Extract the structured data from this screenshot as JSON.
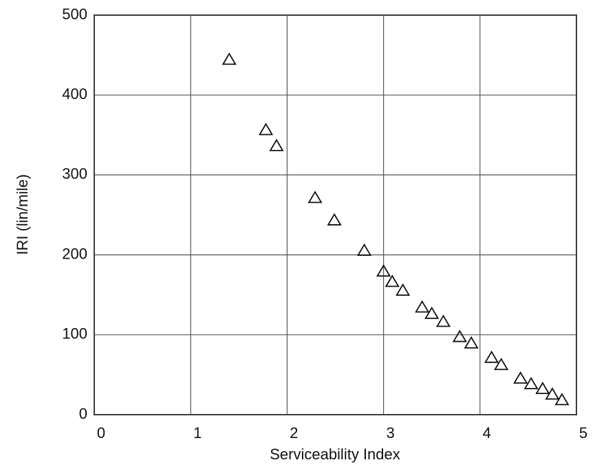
{
  "chart_data": {
    "type": "scatter",
    "x_label": "Serviceability Index",
    "y_label": "IRI (lin/mile)",
    "x": [
      1.4,
      1.78,
      1.89,
      2.29,
      2.49,
      2.8,
      3.0,
      3.09,
      3.2,
      3.4,
      3.5,
      3.62,
      3.79,
      3.91,
      4.12,
      4.22,
      4.42,
      4.53,
      4.65,
      4.75,
      4.85
    ],
    "values": [
      444,
      356,
      336,
      271,
      243,
      205,
      179,
      166,
      155,
      134,
      126,
      116,
      97,
      89,
      71,
      62,
      45,
      38,
      32,
      25,
      18
    ],
    "marker": "triangle",
    "color": "#111111",
    "xlim": [
      0,
      5
    ],
    "xticks": [
      0,
      1,
      2,
      3,
      4,
      5
    ],
    "ylim": [
      0,
      500
    ],
    "yticks": [
      0,
      100,
      200,
      300,
      400,
      500
    ],
    "grid": true
  }
}
